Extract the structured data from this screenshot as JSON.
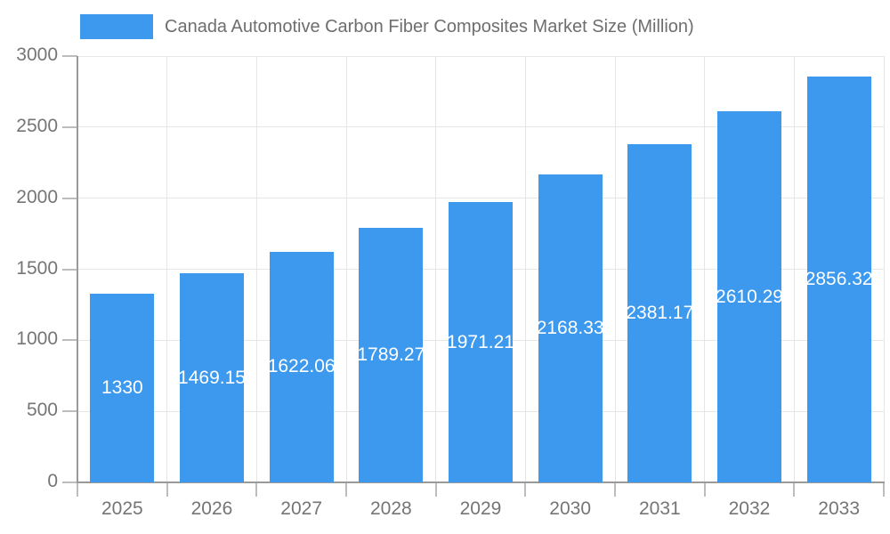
{
  "chart_data": {
    "type": "bar",
    "title": "Canada Automotive Carbon Fiber Composites Market Size (Million)",
    "categories": [
      "2025",
      "2026",
      "2027",
      "2028",
      "2029",
      "2030",
      "2031",
      "2032",
      "2033"
    ],
    "values": [
      1330,
      1469.15,
      1622.06,
      1789.27,
      1971.21,
      2168.33,
      2381.17,
      2610.29,
      2856.32
    ],
    "value_labels": [
      "1330",
      "1469.15",
      "1622.06",
      "1789.27",
      "1971.21",
      "2168.33",
      "2381.17",
      "2610.29",
      "2856.32"
    ],
    "xlabel": "",
    "ylabel": "",
    "ylim": [
      0,
      3000
    ],
    "yticks": [
      0,
      500,
      1000,
      1500,
      2000,
      2500,
      3000
    ],
    "grid": true,
    "legend_position": "top"
  },
  "colors": {
    "bar": "#3C99ED",
    "axis": "#9a9a9a",
    "grid": "#e6e6e6",
    "tick": "#bdbdbd",
    "axis_text": "#757575",
    "legend_text": "#6e6e6e",
    "value_text": "#ffffff",
    "background": "#ffffff"
  }
}
